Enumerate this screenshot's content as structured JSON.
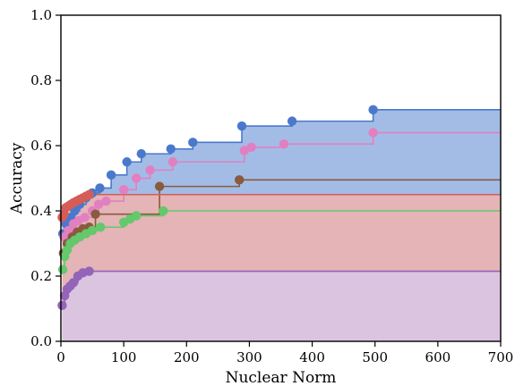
{
  "chart_data": {
    "type": "line",
    "step": true,
    "xlabel": "Nuclear Norm",
    "ylabel": "Accuracy",
    "xlim": [
      0,
      700
    ],
    "ylim": [
      0.0,
      1.0
    ],
    "xticks": [
      0,
      100,
      200,
      300,
      400,
      500,
      600,
      700
    ],
    "yticks": [
      0.0,
      0.2,
      0.4,
      0.6,
      0.8,
      1.0
    ],
    "xtick_labels": [
      "0",
      "100",
      "200",
      "300",
      "400",
      "500",
      "600",
      "700"
    ],
    "ytick_labels": [
      "0.0",
      "0.2",
      "0.4",
      "0.6",
      "0.8",
      "1.0"
    ],
    "grid": false,
    "legend": "none",
    "series": [
      {
        "color": "#4a78cc",
        "fill": "#a3bce6",
        "points": [
          [
            3,
            0.33
          ],
          [
            8,
            0.36
          ],
          [
            15,
            0.38
          ],
          [
            22,
            0.4
          ],
          [
            30,
            0.42
          ],
          [
            40,
            0.44
          ],
          [
            50,
            0.455
          ],
          [
            62,
            0.47
          ],
          [
            80,
            0.51
          ],
          [
            105,
            0.55
          ],
          [
            128,
            0.575
          ],
          [
            175,
            0.59
          ],
          [
            210,
            0.61
          ],
          [
            288,
            0.66
          ],
          [
            368,
            0.675
          ],
          [
            497,
            0.71
          ],
          [
            700,
            0.71
          ]
        ]
      },
      {
        "color": "#e27fc1",
        "fill": null,
        "points": [
          [
            5,
            0.32
          ],
          [
            12,
            0.34
          ],
          [
            20,
            0.36
          ],
          [
            28,
            0.37
          ],
          [
            38,
            0.38
          ],
          [
            50,
            0.4
          ],
          [
            60,
            0.42
          ],
          [
            72,
            0.43
          ],
          [
            100,
            0.465
          ],
          [
            120,
            0.5
          ],
          [
            142,
            0.525
          ],
          [
            178,
            0.55
          ],
          [
            292,
            0.585
          ],
          [
            303,
            0.595
          ],
          [
            355,
            0.605
          ],
          [
            497,
            0.64
          ],
          [
            700,
            0.64
          ]
        ]
      },
      {
        "color": "#8a5a3e",
        "fill": null,
        "points": [
          [
            4,
            0.27
          ],
          [
            10,
            0.3
          ],
          [
            18,
            0.32
          ],
          [
            26,
            0.335
          ],
          [
            35,
            0.345
          ],
          [
            45,
            0.35
          ],
          [
            55,
            0.39
          ],
          [
            157,
            0.475
          ],
          [
            284,
            0.495
          ],
          [
            700,
            0.495
          ]
        ]
      },
      {
        "color": "#d65c57",
        "fill": "#f0b3ad",
        "points": [
          [
            2,
            0.38
          ],
          [
            5,
            0.39
          ],
          [
            8,
            0.41
          ],
          [
            12,
            0.415
          ],
          [
            16,
            0.42
          ],
          [
            20,
            0.425
          ],
          [
            25,
            0.43
          ],
          [
            30,
            0.435
          ],
          [
            35,
            0.44
          ],
          [
            40,
            0.445
          ],
          [
            45,
            0.45
          ],
          [
            700,
            0.45
          ]
        ]
      },
      {
        "color": "#63c96b",
        "fill": null,
        "points": [
          [
            3,
            0.22
          ],
          [
            6,
            0.26
          ],
          [
            10,
            0.28
          ],
          [
            15,
            0.3
          ],
          [
            22,
            0.31
          ],
          [
            30,
            0.32
          ],
          [
            40,
            0.33
          ],
          [
            50,
            0.34
          ],
          [
            63,
            0.35
          ],
          [
            100,
            0.365
          ],
          [
            110,
            0.375
          ],
          [
            120,
            0.385
          ],
          [
            163,
            0.4
          ],
          [
            700,
            0.4
          ]
        ]
      },
      {
        "color": "#9364b8",
        "fill": "#d9c7e8",
        "points": [
          [
            2,
            0.11
          ],
          [
            6,
            0.14
          ],
          [
            10,
            0.16
          ],
          [
            15,
            0.17
          ],
          [
            20,
            0.18
          ],
          [
            27,
            0.2
          ],
          [
            35,
            0.21
          ],
          [
            45,
            0.215
          ],
          [
            700,
            0.215
          ]
        ]
      }
    ]
  }
}
